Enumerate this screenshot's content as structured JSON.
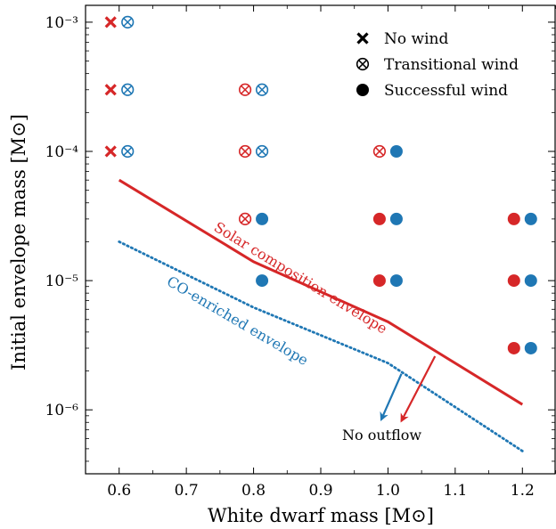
{
  "chart_data": {
    "type": "scatter",
    "xlabel": "White dwarf mass [M⊙]",
    "ylabel": "Initial envelope mass [M⊙]",
    "xlim": [
      0.55,
      1.25
    ],
    "ylim": [
      3.2e-07,
      0.00135
    ],
    "yscale": "log",
    "grid": false,
    "legend_position": "top-right",
    "x_ticks": [
      0.6,
      0.7,
      0.8,
      0.9,
      1.0,
      1.1,
      1.2
    ],
    "x_tick_labels": [
      "0.6",
      "0.7",
      "0.8",
      "0.9",
      "1.0",
      "1.1",
      "1.2"
    ],
    "y_ticks": [
      1e-06,
      1e-05,
      0.0001,
      0.001
    ],
    "y_tick_labels": [
      "10⁻⁶",
      "10⁻⁵",
      "10⁻⁴",
      "10⁻³"
    ],
    "legend": [
      {
        "marker": "cross",
        "label": "No wind"
      },
      {
        "marker": "otimes",
        "label": "Transitional wind"
      },
      {
        "marker": "dot",
        "label": "Successful wind"
      }
    ],
    "colors": {
      "solar": "#d62728",
      "co": "#1f77b4"
    },
    "series": [
      {
        "composition": "solar",
        "points": [
          {
            "x": 0.6,
            "y": 0.001,
            "outcome": "none"
          },
          {
            "x": 0.6,
            "y": 0.0003,
            "outcome": "none"
          },
          {
            "x": 0.6,
            "y": 0.0001,
            "outcome": "none"
          },
          {
            "x": 0.8,
            "y": 0.0003,
            "outcome": "transitional"
          },
          {
            "x": 0.8,
            "y": 0.0001,
            "outcome": "transitional"
          },
          {
            "x": 0.8,
            "y": 3e-05,
            "outcome": "transitional"
          },
          {
            "x": 1.0,
            "y": 0.0001,
            "outcome": "transitional"
          },
          {
            "x": 1.0,
            "y": 3e-05,
            "outcome": "successful"
          },
          {
            "x": 1.0,
            "y": 1e-05,
            "outcome": "successful"
          },
          {
            "x": 1.2,
            "y": 3e-05,
            "outcome": "successful"
          },
          {
            "x": 1.2,
            "y": 1e-05,
            "outcome": "successful"
          },
          {
            "x": 1.2,
            "y": 3e-06,
            "outcome": "successful"
          }
        ]
      },
      {
        "composition": "co",
        "points": [
          {
            "x": 0.6,
            "y": 0.001,
            "outcome": "transitional"
          },
          {
            "x": 0.6,
            "y": 0.0003,
            "outcome": "transitional"
          },
          {
            "x": 0.6,
            "y": 0.0001,
            "outcome": "transitional"
          },
          {
            "x": 0.8,
            "y": 0.0003,
            "outcome": "transitional"
          },
          {
            "x": 0.8,
            "y": 0.0001,
            "outcome": "transitional"
          },
          {
            "x": 0.8,
            "y": 3e-05,
            "outcome": "successful"
          },
          {
            "x": 0.8,
            "y": 1e-05,
            "outcome": "successful"
          },
          {
            "x": 1.0,
            "y": 0.0001,
            "outcome": "successful"
          },
          {
            "x": 1.0,
            "y": 3e-05,
            "outcome": "successful"
          },
          {
            "x": 1.0,
            "y": 1e-05,
            "outcome": "successful"
          },
          {
            "x": 1.2,
            "y": 3e-05,
            "outcome": "successful"
          },
          {
            "x": 1.2,
            "y": 1e-05,
            "outcome": "successful"
          },
          {
            "x": 1.2,
            "y": 3e-06,
            "outcome": "successful"
          }
        ]
      }
    ],
    "boundaries": [
      {
        "name": "Solar composition envelope",
        "color": "#d62728",
        "style": "solid",
        "x": [
          0.6,
          0.8,
          1.0,
          1.2
        ],
        "y": [
          6e-05,
          1.4e-05,
          4.8e-06,
          1.1e-06
        ]
      },
      {
        "name": "CO-enriched envelope",
        "color": "#1f77b4",
        "style": "dotted",
        "x": [
          0.6,
          0.8,
          1.0,
          1.2
        ],
        "y": [
          2e-05,
          6.2e-06,
          2.3e-06,
          4.8e-07
        ]
      }
    ],
    "annotations": {
      "no_outflow": "No outflow",
      "arrows": [
        {
          "color": "#d62728",
          "from": [
            1.07,
            2.6e-06
          ],
          "to": [
            1.02,
            8.2e-07
          ]
        },
        {
          "color": "#1f77b4",
          "from": [
            1.02,
            1.9e-06
          ],
          "to": [
            0.99,
            8.4e-07
          ]
        }
      ]
    }
  }
}
